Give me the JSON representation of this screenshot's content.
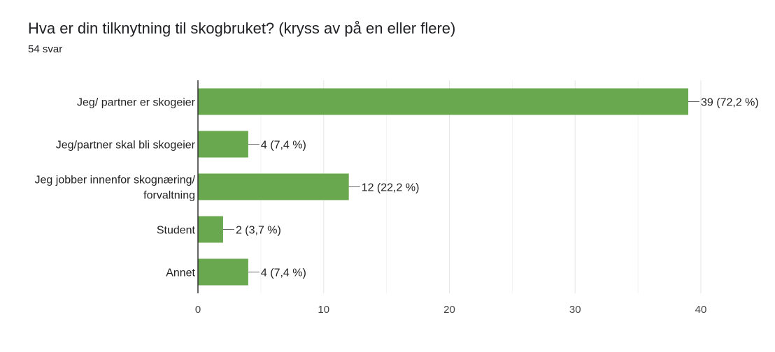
{
  "header": {
    "title": "Hva er din tilknytning til skogbruket? (kryss av på en eller flere)",
    "response_count": "54 svar"
  },
  "colors": {
    "bar": "#6aa84f",
    "axis": "#333333",
    "grid": "#e6e6e6",
    "connector": "#666666"
  },
  "chart_data": {
    "type": "bar",
    "orientation": "horizontal",
    "categories": [
      [
        "Jeg/ partner er skogeier"
      ],
      [
        "Jeg/partner skal bli skogeier"
      ],
      [
        "Jeg jobber innenfor skognæring/",
        "forvaltning"
      ],
      [
        "Student"
      ],
      [
        "Annet"
      ]
    ],
    "values": [
      39,
      4,
      12,
      2,
      4
    ],
    "value_labels": [
      "39 (72,2 %)",
      "4 (7,4 %)",
      "12 (22,2 %)",
      "2 (3,7 %)",
      "4 (7,4 %)"
    ],
    "xlim": [
      0,
      40
    ],
    "xticks": [
      0,
      10,
      20,
      30,
      40
    ],
    "grid": true
  }
}
